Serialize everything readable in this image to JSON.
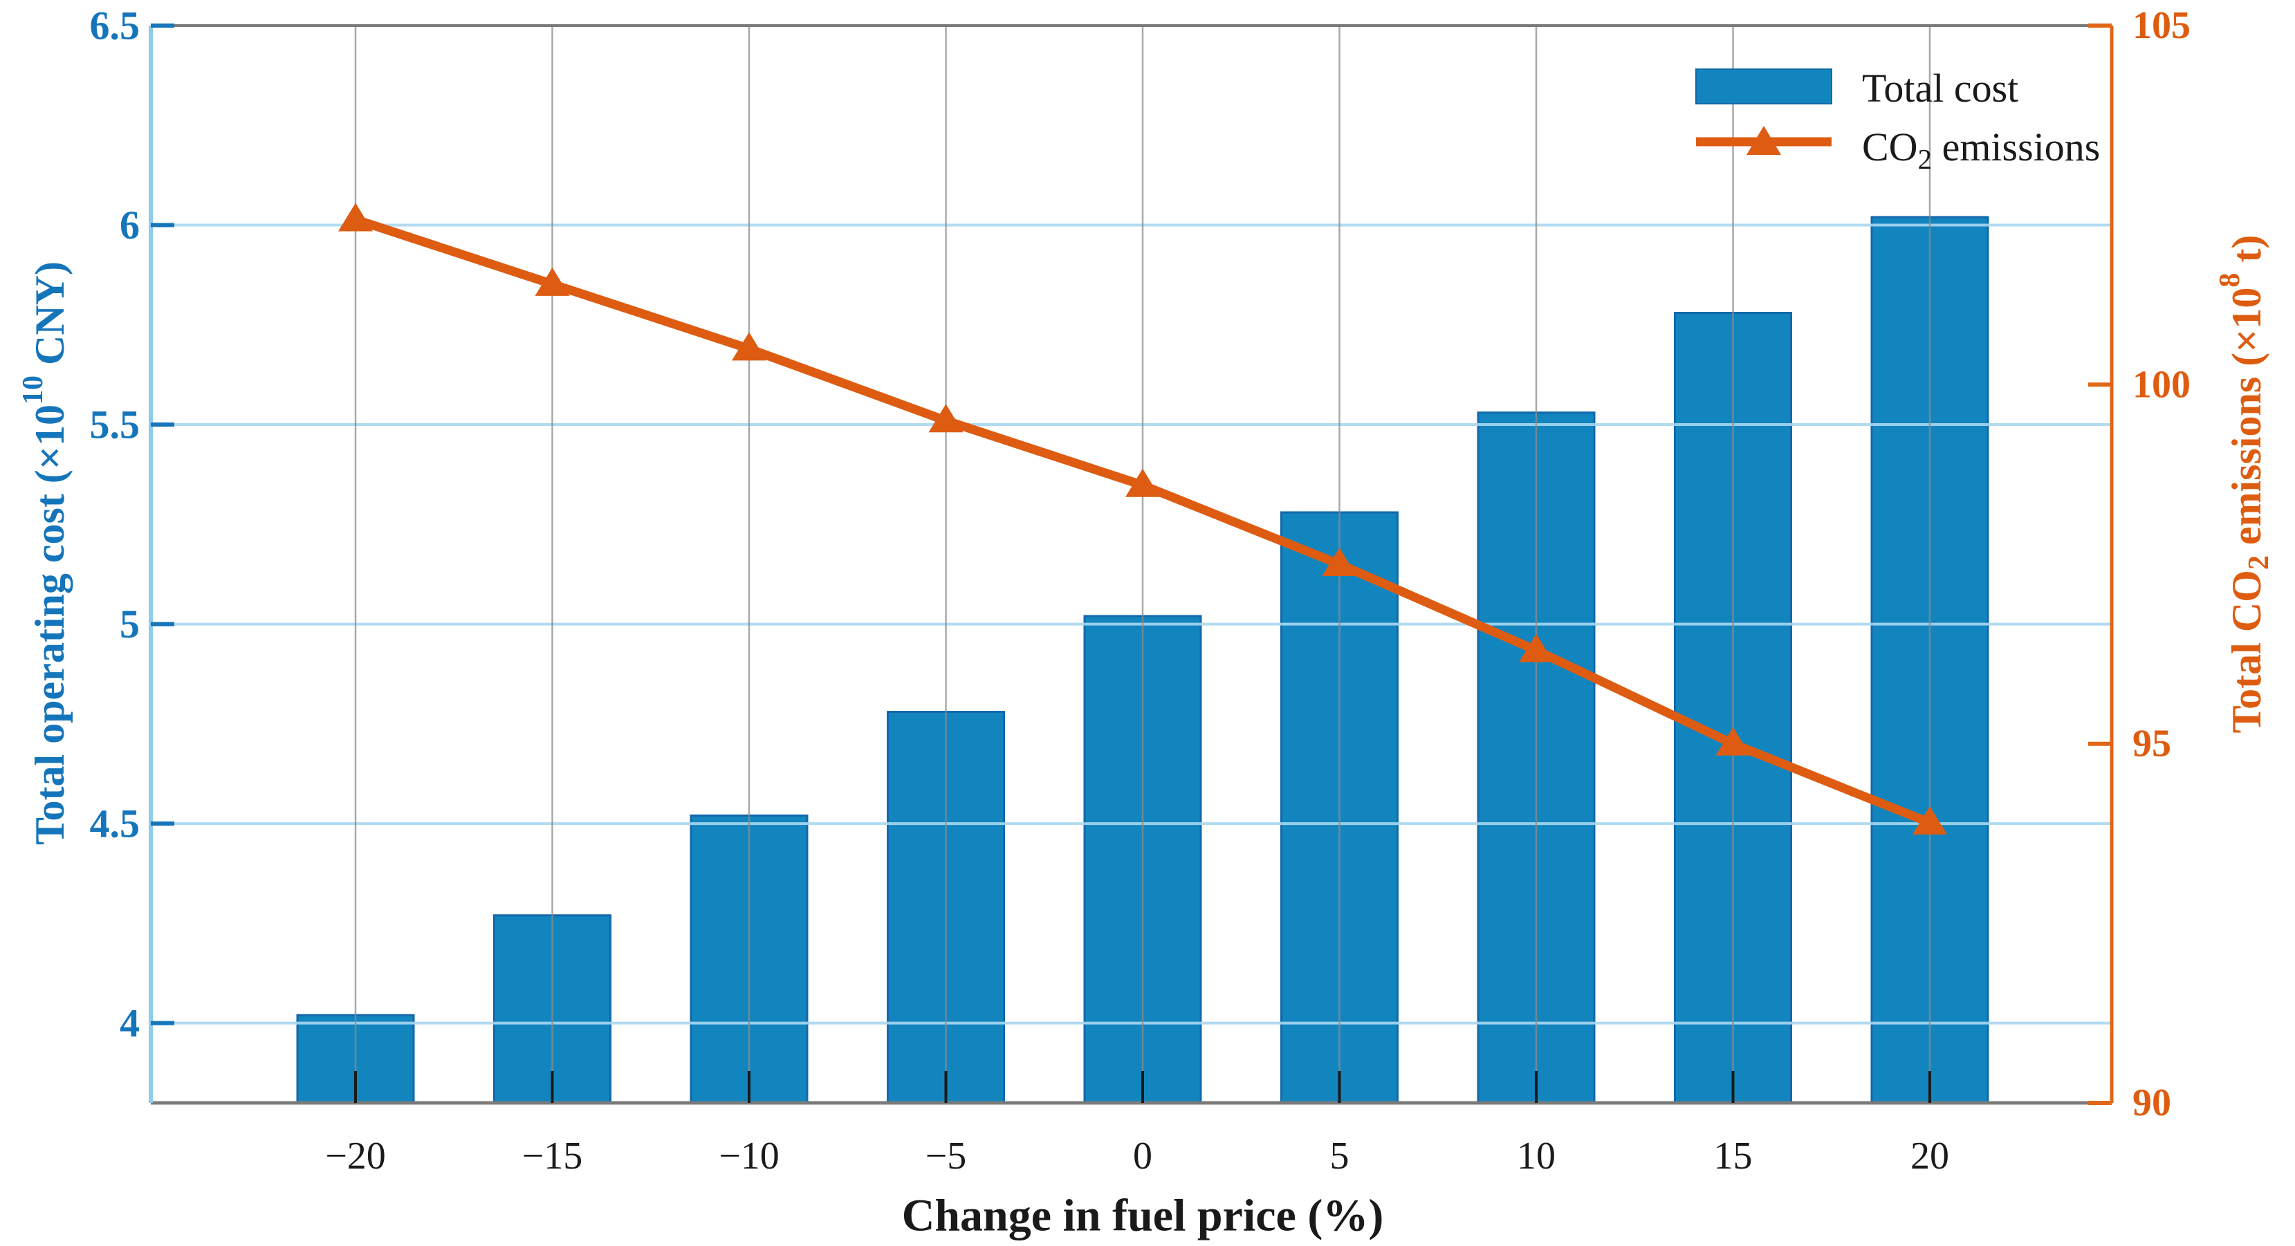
{
  "chart_data": {
    "type": "combo-bar-line",
    "title": "",
    "xlabel": "Change in fuel price (%)",
    "x_tick_labels": [
      "−20",
      "−15",
      "−10",
      "−5",
      "0",
      "5",
      "10",
      "15",
      "20"
    ],
    "categories": [
      -20,
      -15,
      -10,
      -5,
      0,
      5,
      10,
      15,
      20
    ],
    "grid": {
      "horizontal": true,
      "vertical": true
    },
    "legend_position": "top-right",
    "axis_left": {
      "label": "Total operating cost (×10^10 CNY)",
      "label_parts": [
        {
          "t": "Total operating cost (×10"
        },
        {
          "t": "10",
          "sup": true
        },
        {
          "t": " CNY)"
        }
      ],
      "min": 3.8,
      "max": 6.5,
      "ticks": [
        4,
        4.5,
        5,
        5.5,
        6,
        6.5
      ],
      "tick_labels": [
        "4",
        "4.5",
        "5",
        "5.5",
        "6",
        "6.5"
      ]
    },
    "axis_right": {
      "label": "Total CO2 emissions (×10^8 t)",
      "label_parts": [
        {
          "t": "Total CO"
        },
        {
          "t": "2",
          "sub": true
        },
        {
          "t": " emissions (×10"
        },
        {
          "t": "8",
          "sup": true
        },
        {
          "t": " t)"
        }
      ],
      "min": 90,
      "max": 105,
      "ticks": [
        90,
        95,
        100,
        105
      ],
      "tick_labels": [
        "90",
        "95",
        "100",
        "105"
      ]
    },
    "series": [
      {
        "name": "Total cost",
        "legend_parts": [
          {
            "t": "Total cost"
          }
        ],
        "type": "bar",
        "axis": "left",
        "values": [
          4.02,
          4.27,
          4.52,
          4.78,
          5.02,
          5.28,
          5.53,
          5.78,
          6.02
        ]
      },
      {
        "name": "CO2 emissions",
        "legend_parts": [
          {
            "t": "CO"
          },
          {
            "t": "2",
            "sub": true
          },
          {
            "t": "  emissions"
          }
        ],
        "type": "line",
        "axis": "right",
        "marker": "triangle-up",
        "values": [
          102.3,
          101.4,
          100.5,
          99.5,
          98.6,
          97.5,
          96.3,
          95.0,
          93.9
        ]
      }
    ],
    "colors": {
      "bar_fill": "#1385BE",
      "bar_edge": "#1268AC",
      "line_orange": "#DD5C12",
      "right_axis_line": "#E06717",
      "right_text": "#DE5C10",
      "left_axis_line": "#8FCBEA",
      "left_text": "#1575BB",
      "h_grid": "#A9D8F0",
      "v_grid": "#8C8C8C",
      "frame_gray": "#7B7B7B",
      "black_text": "#1A1A1A"
    }
  }
}
